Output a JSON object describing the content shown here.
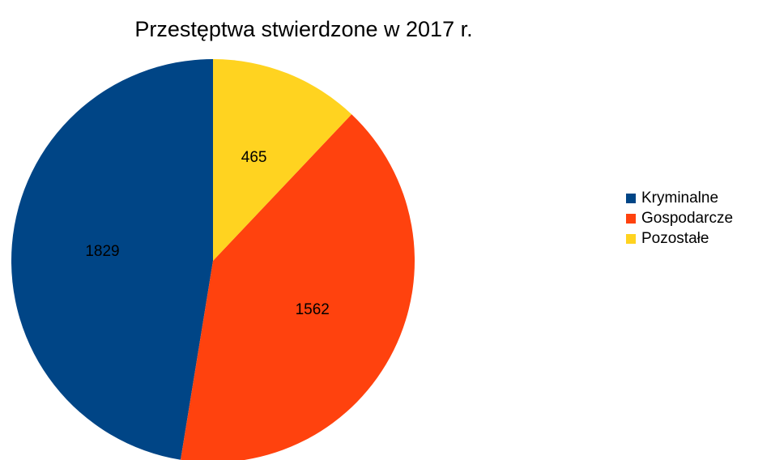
{
  "chart_data": {
    "type": "pie",
    "title": "Przestęptwa stwierdzone w 2017 r.",
    "categories": [
      "Kryminalne",
      "Gospodarcze",
      "Pozostałe"
    ],
    "values": [
      1829,
      1562,
      465
    ],
    "colors": [
      "#004586",
      "#ff420e",
      "#ffd320"
    ],
    "legend": "right"
  }
}
